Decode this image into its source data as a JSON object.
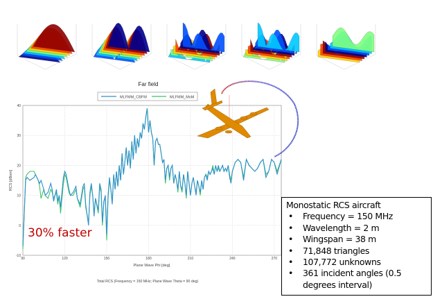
{
  "thumbnails": {
    "count": 5
  },
  "chart_data": {
    "type": "line",
    "title": "Far field",
    "xlabel": "Plane Wave Phi [deg]",
    "ylabel": "RCS [dBsm]",
    "footer": "Total RCS (Frequency = 150 MHz; Plane Wave Theta = 90 deg)",
    "xlim": [
      90,
      275
    ],
    "ylim": [
      -10,
      40
    ],
    "xticks": [
      90,
      120,
      150,
      180,
      210,
      240,
      270
    ],
    "yticks": [
      -10,
      0,
      10,
      20,
      30,
      40
    ],
    "grid": true,
    "legend_position": "top-center",
    "x": [
      90,
      92,
      93,
      95,
      98,
      99,
      101,
      102,
      103,
      105,
      106,
      108,
      110,
      111,
      112,
      114,
      115,
      116,
      117,
      119,
      120,
      121,
      123,
      124,
      126,
      128,
      129,
      131,
      133,
      134,
      135,
      137,
      138,
      139,
      140,
      141,
      142,
      144,
      145,
      146,
      147,
      148,
      149,
      150,
      151,
      152,
      153,
      154,
      155,
      156,
      157,
      158,
      159,
      160,
      161,
      162,
      163,
      164,
      165,
      166,
      167,
      168,
      169,
      170,
      171,
      172,
      173,
      174,
      175,
      176,
      177,
      178,
      179,
      180,
      181,
      182,
      183,
      184,
      185,
      186,
      187,
      188,
      189,
      190,
      191,
      192,
      193,
      194,
      195,
      196,
      197,
      198,
      199,
      200,
      201,
      202,
      203,
      204,
      205,
      206,
      207,
      208,
      209,
      210,
      211,
      212,
      213,
      214,
      215,
      216,
      217,
      218,
      219,
      220,
      221,
      222,
      223,
      224,
      225,
      226,
      227,
      228,
      229,
      230,
      231,
      232,
      233,
      234,
      235,
      236,
      237,
      238,
      239,
      240,
      242,
      244,
      246,
      248,
      250,
      252,
      254,
      256,
      258,
      260,
      262,
      264,
      266,
      268,
      270,
      272,
      275
    ],
    "series": [
      {
        "name": "MLFMM_CBFM",
        "color": "#2f8fce",
        "values": [
          -7,
          15,
          16,
          15,
          16,
          17,
          15,
          14,
          15,
          12,
          10,
          11,
          14,
          12,
          8,
          12,
          8,
          10,
          6,
          16,
          18,
          17,
          12,
          10,
          11,
          13,
          9,
          7,
          13,
          14,
          7,
          0,
          11,
          14,
          10,
          3,
          9,
          5,
          14,
          12,
          1,
          8,
          10,
          -3,
          10,
          16,
          12,
          7,
          17,
          12,
          18,
          13,
          20,
          15,
          24,
          17,
          21,
          26,
          20,
          25,
          19,
          28,
          22,
          30,
          24,
          29,
          26,
          31,
          29,
          34,
          32,
          36,
          39,
          31,
          35,
          31,
          29,
          20,
          28,
          29,
          27,
          27,
          24,
          21,
          22,
          15,
          19,
          20,
          16,
          19,
          20,
          14,
          17,
          15,
          12,
          18,
          13,
          12,
          17,
          14,
          10,
          18,
          14,
          10,
          14,
          16,
          13,
          10,
          15,
          13,
          11,
          15,
          12,
          16,
          17,
          15,
          18,
          17,
          18,
          19,
          17,
          20,
          18,
          20,
          18,
          19,
          20,
          18,
          19,
          18,
          20,
          16,
          14,
          18,
          21,
          22,
          21,
          15,
          22,
          20,
          19,
          18,
          19,
          21,
          22,
          16,
          18,
          22,
          21,
          17,
          22
        ]
      },
      {
        "name": "MLFMM_MoM",
        "color": "#3cc46a",
        "values": [
          -8,
          16,
          17,
          18,
          18,
          17,
          15,
          13,
          9,
          12,
          10,
          9,
          12,
          11,
          9,
          11,
          7,
          10,
          4,
          14,
          17,
          16,
          11,
          10,
          10,
          12,
          9,
          6,
          12,
          13,
          6,
          1,
          10,
          13,
          10,
          4,
          9,
          4,
          13,
          11,
          0,
          8,
          9,
          -5,
          9,
          15,
          12,
          8,
          17,
          12,
          18,
          13,
          20,
          15,
          24,
          17,
          21,
          26,
          20,
          25,
          19,
          28,
          22,
          30,
          24,
          29,
          26,
          31,
          29,
          34,
          32,
          36,
          39,
          31,
          35,
          31,
          29,
          20,
          28,
          29,
          27,
          27,
          24,
          21,
          22,
          14,
          19,
          20,
          15,
          19,
          20,
          14,
          17,
          15,
          11,
          18,
          13,
          11,
          17,
          14,
          9,
          18,
          14,
          10,
          14,
          16,
          13,
          11,
          15,
          13,
          10,
          15,
          12,
          16,
          17,
          16,
          18,
          17,
          18,
          20,
          17,
          20,
          18,
          19,
          18,
          19,
          20,
          18,
          19,
          18,
          20,
          17,
          15,
          18,
          21,
          22,
          21,
          16,
          22,
          20,
          19,
          18,
          19,
          21,
          22,
          17,
          18,
          22,
          21,
          18,
          22
        ]
      }
    ]
  },
  "annotation": "30% faster",
  "info": {
    "title": "Monostatic RCS aircraft",
    "items": [
      "Frequency = 150  MHz",
      "Wavelength = 2 m",
      "Wingspan = 38  m",
      "71,848  triangles",
      "107,772  unknowns",
      "361  incident angles (0.5 degrees interval)"
    ]
  },
  "colors": {
    "aircraft": "#e08a00",
    "annotation": "#c00000"
  }
}
